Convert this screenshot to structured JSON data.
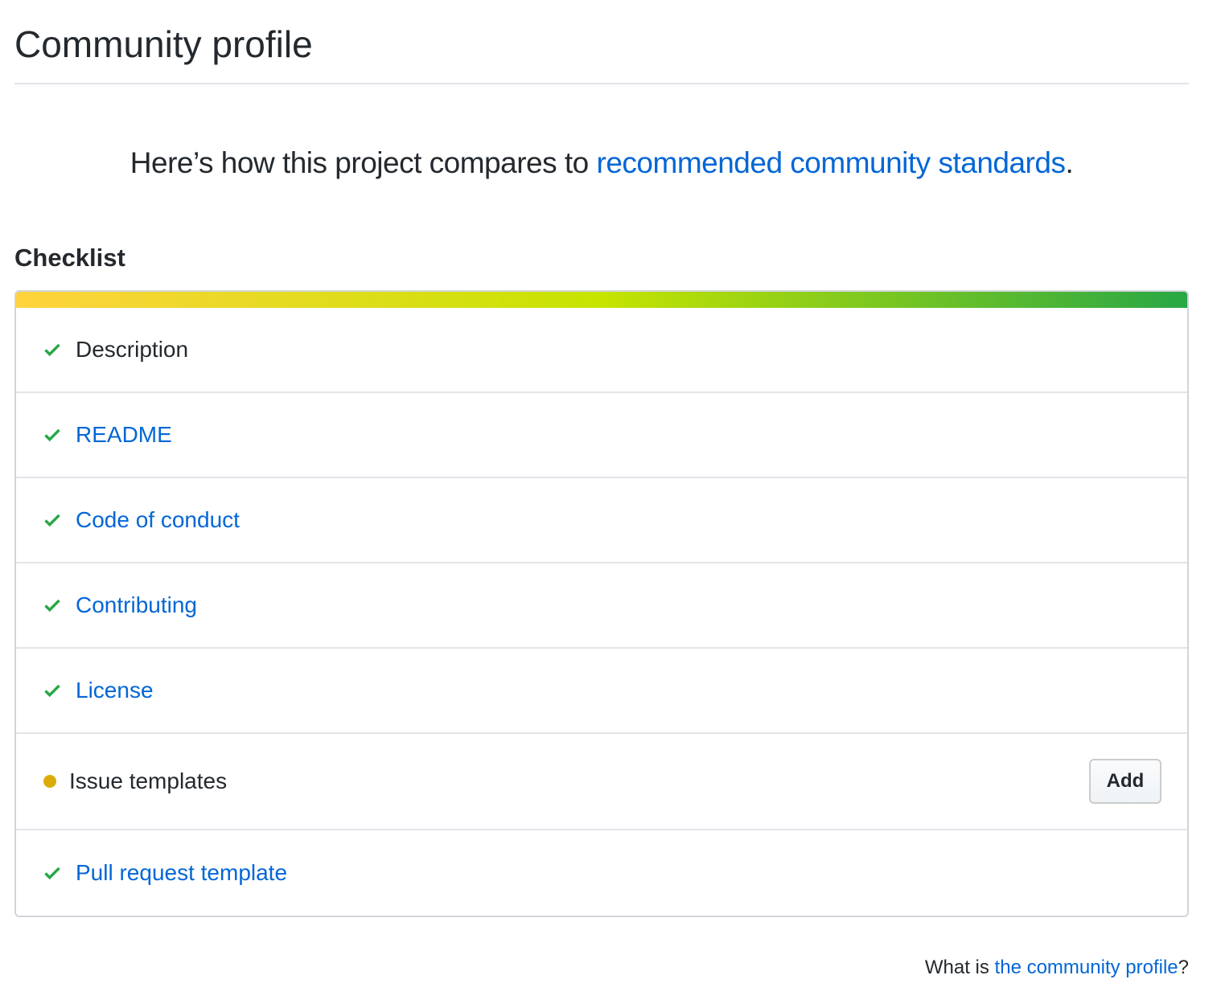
{
  "title": "Community profile",
  "intro": {
    "prefix": "Here’s how this project compares to ",
    "link": "recommended community standards",
    "suffix": "."
  },
  "checklist": {
    "heading": "Checklist",
    "progress_colors": [
      "#ffd33d",
      "#c6e400",
      "#28a745"
    ],
    "items": [
      {
        "label": "Description",
        "status": "done",
        "link": false
      },
      {
        "label": "README",
        "status": "done",
        "link": true
      },
      {
        "label": "Code of conduct",
        "status": "done",
        "link": true
      },
      {
        "label": "Contributing",
        "status": "done",
        "link": true
      },
      {
        "label": "License",
        "status": "done",
        "link": true
      },
      {
        "label": "Issue templates",
        "status": "missing",
        "link": false,
        "action": "Add"
      },
      {
        "label": "Pull request template",
        "status": "done",
        "link": true
      }
    ]
  },
  "footer": {
    "prefix": "What is ",
    "link": "the community profile",
    "suffix": "?"
  },
  "colors": {
    "link": "#0366d6",
    "check": "#28a745",
    "pending": "#dbab09"
  }
}
